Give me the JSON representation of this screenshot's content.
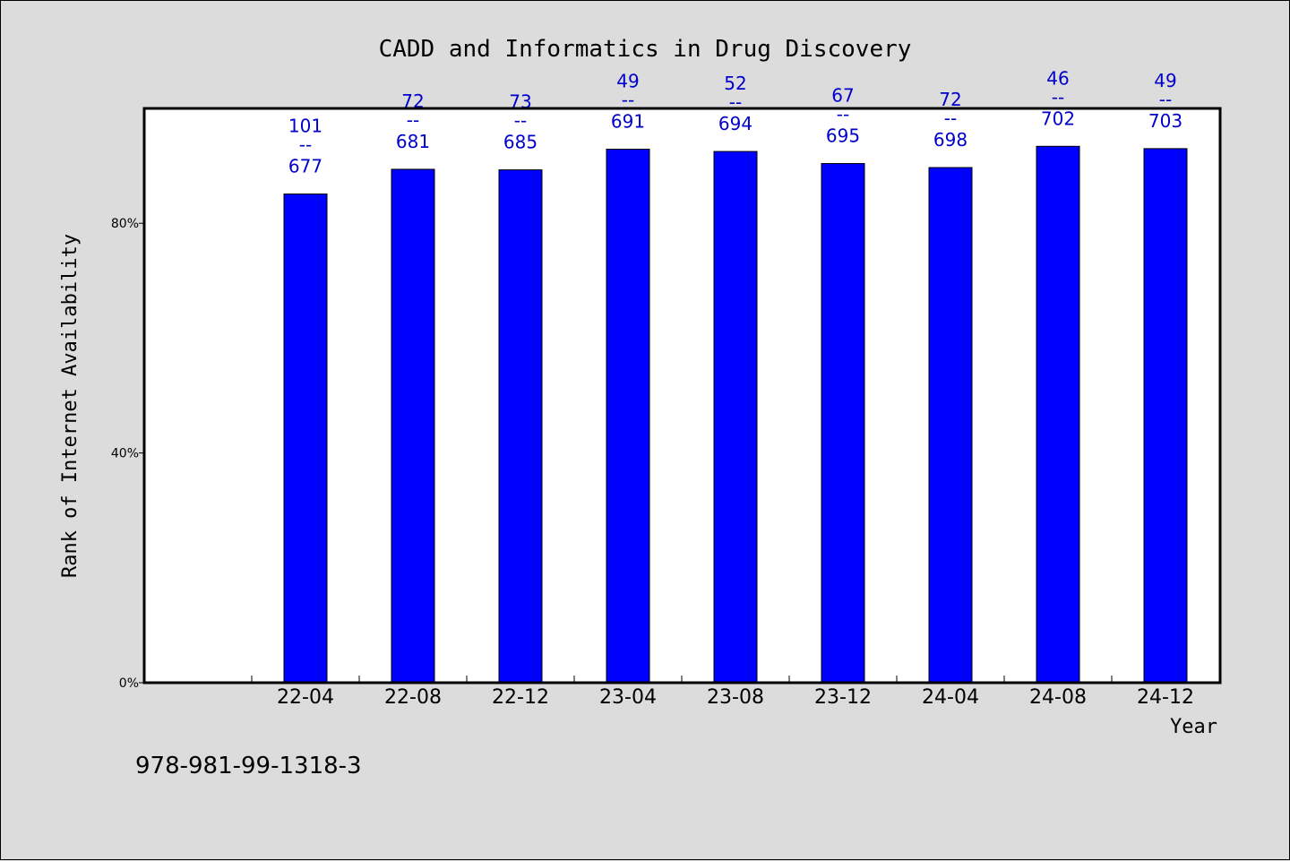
{
  "isbn": "978-981-99-1318-3",
  "colors": {
    "bar": "#0000ff",
    "bar_stroke": "#000000",
    "label": "#0000cc",
    "background": "#dcdcdc",
    "plot_background": "#ffffff"
  },
  "chart_data": {
    "type": "bar",
    "title": "CADD and Informatics in Drug Discovery",
    "xlabel": "Year",
    "ylabel": "Rank of Internet Availability",
    "ylim": [
      0,
      100
    ],
    "yticks": [
      {
        "value": 0,
        "label": "0%"
      },
      {
        "value": 40,
        "label": "40%"
      },
      {
        "value": 80,
        "label": "80%"
      }
    ],
    "grid": false,
    "legend": "none",
    "categories": [
      "22-04",
      "22-08",
      "22-12",
      "23-04",
      "23-08",
      "23-12",
      "24-04",
      "24-08",
      "24-12"
    ],
    "values": [
      85.1,
      89.4,
      89.3,
      92.9,
      92.5,
      90.4,
      89.7,
      93.4,
      93.0
    ],
    "labels": [
      {
        "top": "101",
        "sep": "--",
        "bottom": "677"
      },
      {
        "top": "72",
        "sep": "--",
        "bottom": "681"
      },
      {
        "top": "73",
        "sep": "--",
        "bottom": "685"
      },
      {
        "top": "49",
        "sep": "--",
        "bottom": "691"
      },
      {
        "top": "52",
        "sep": "--",
        "bottom": "694"
      },
      {
        "top": "67",
        "sep": "--",
        "bottom": "695"
      },
      {
        "top": "72",
        "sep": "--",
        "bottom": "698"
      },
      {
        "top": "46",
        "sep": "--",
        "bottom": "702"
      },
      {
        "top": "49",
        "sep": "--",
        "bottom": "703"
      }
    ]
  }
}
